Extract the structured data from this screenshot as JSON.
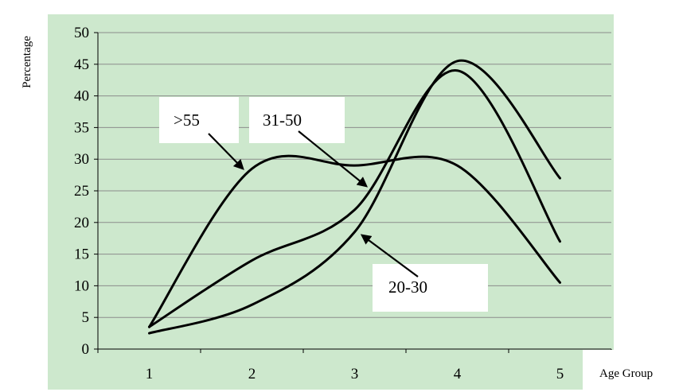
{
  "chart_data": {
    "type": "line",
    "title": "",
    "xlabel": "Age Group",
    "ylabel": "Percentage",
    "categories": [
      "1",
      "2",
      "3",
      "4",
      "5"
    ],
    "yticks": [
      "0",
      "5",
      "10",
      "15",
      "20",
      "25",
      "30",
      "35",
      "40",
      "45",
      "50"
    ],
    "ylim": [
      0,
      50
    ],
    "grid": true,
    "legend": "none (series labelled by callout boxes with arrows)",
    "series": [
      {
        "name": ">55",
        "values": [
          3.5,
          28.5,
          29.0,
          29.0,
          10.5
        ]
      },
      {
        "name": "31-50",
        "values": [
          3.5,
          14.0,
          22.0,
          44.0,
          17.0
        ]
      },
      {
        "name": "20-30",
        "values": [
          2.5,
          7.0,
          18.5,
          45.5,
          27.0
        ]
      }
    ],
    "colors": {
      "plot_background": "#cde8cd",
      "line": "#000000",
      "gridline": "#8c8c8c",
      "callout_box": "#ffffff"
    }
  }
}
